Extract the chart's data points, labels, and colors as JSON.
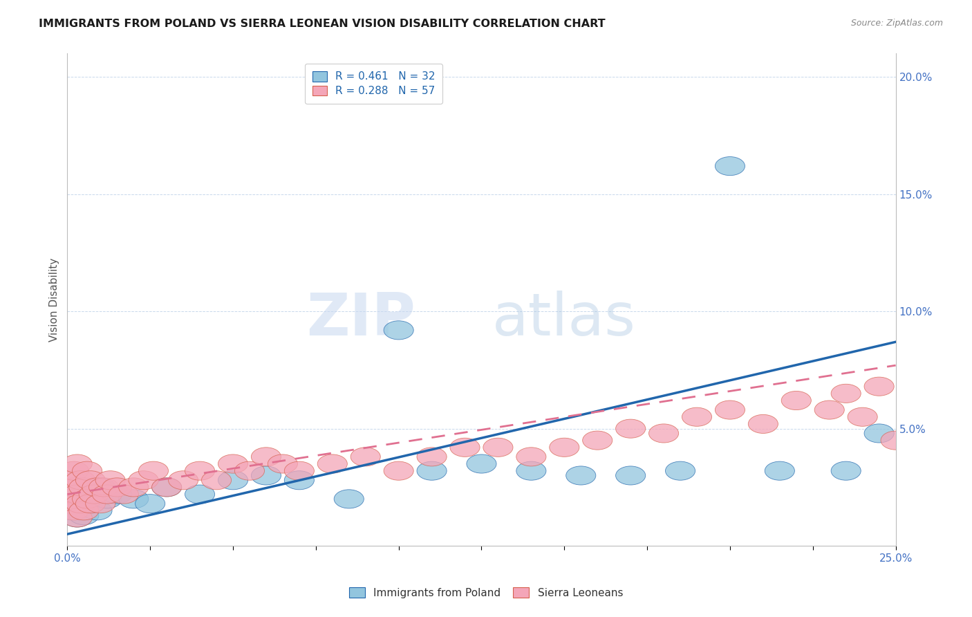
{
  "title": "IMMIGRANTS FROM POLAND VS SIERRA LEONEAN VISION DISABILITY CORRELATION CHART",
  "source": "Source: ZipAtlas.com",
  "ylabel": "Vision Disability",
  "xlim": [
    0.0,
    0.25
  ],
  "ylim": [
    0.0,
    0.21
  ],
  "ytick_vals": [
    0.0,
    0.05,
    0.1,
    0.15,
    0.2
  ],
  "ytick_labels": [
    "",
    "5.0%",
    "10.0%",
    "15.0%",
    "20.0%"
  ],
  "xtick_vals": [
    0.0,
    0.025,
    0.05,
    0.075,
    0.1,
    0.125,
    0.15,
    0.175,
    0.2,
    0.225,
    0.25
  ],
  "xtick_labels": [
    "0.0%",
    "",
    "",
    "",
    "",
    "",
    "",
    "",
    "",
    "",
    "25.0%"
  ],
  "color_blue": "#92c5de",
  "color_blue_dark": "#2166ac",
  "color_pink": "#f4a6b8",
  "color_pink_dark": "#d6604d",
  "background_color": "#ffffff",
  "grid_color": "#c8d8ec",
  "poland_x": [
    0.001,
    0.002,
    0.003,
    0.003,
    0.004,
    0.005,
    0.006,
    0.007,
    0.008,
    0.009,
    0.01,
    0.012,
    0.015,
    0.02,
    0.025,
    0.03,
    0.04,
    0.05,
    0.06,
    0.07,
    0.085,
    0.1,
    0.11,
    0.125,
    0.14,
    0.155,
    0.17,
    0.185,
    0.2,
    0.215,
    0.235,
    0.245
  ],
  "poland_y": [
    0.015,
    0.018,
    0.012,
    0.022,
    0.016,
    0.013,
    0.02,
    0.018,
    0.022,
    0.015,
    0.025,
    0.02,
    0.022,
    0.02,
    0.018,
    0.025,
    0.022,
    0.028,
    0.03,
    0.028,
    0.02,
    0.092,
    0.032,
    0.035,
    0.032,
    0.03,
    0.03,
    0.032,
    0.162,
    0.032,
    0.032,
    0.048
  ],
  "sierra_x": [
    0.001,
    0.001,
    0.001,
    0.002,
    0.002,
    0.002,
    0.003,
    0.003,
    0.003,
    0.004,
    0.004,
    0.005,
    0.005,
    0.006,
    0.006,
    0.007,
    0.007,
    0.008,
    0.009,
    0.01,
    0.011,
    0.012,
    0.013,
    0.015,
    0.017,
    0.02,
    0.023,
    0.026,
    0.03,
    0.035,
    0.04,
    0.045,
    0.05,
    0.055,
    0.06,
    0.065,
    0.07,
    0.08,
    0.09,
    0.1,
    0.11,
    0.12,
    0.13,
    0.14,
    0.15,
    0.16,
    0.17,
    0.18,
    0.19,
    0.2,
    0.21,
    0.22,
    0.23,
    0.235,
    0.24,
    0.245,
    0.25
  ],
  "sierra_y": [
    0.018,
    0.022,
    0.028,
    0.015,
    0.025,
    0.032,
    0.012,
    0.022,
    0.035,
    0.018,
    0.028,
    0.015,
    0.025,
    0.02,
    0.032,
    0.018,
    0.028,
    0.022,
    0.025,
    0.018,
    0.025,
    0.022,
    0.028,
    0.025,
    0.022,
    0.025,
    0.028,
    0.032,
    0.025,
    0.028,
    0.032,
    0.028,
    0.035,
    0.032,
    0.038,
    0.035,
    0.032,
    0.035,
    0.038,
    0.032,
    0.038,
    0.042,
    0.042,
    0.038,
    0.042,
    0.045,
    0.05,
    0.048,
    0.055,
    0.058,
    0.052,
    0.062,
    0.058,
    0.065,
    0.055,
    0.068,
    0.045
  ],
  "poland_line_x": [
    0.0,
    0.25
  ],
  "poland_line_y": [
    0.005,
    0.087
  ],
  "sierra_line_x": [
    0.0,
    0.25
  ],
  "sierra_line_y": [
    0.022,
    0.077
  ]
}
